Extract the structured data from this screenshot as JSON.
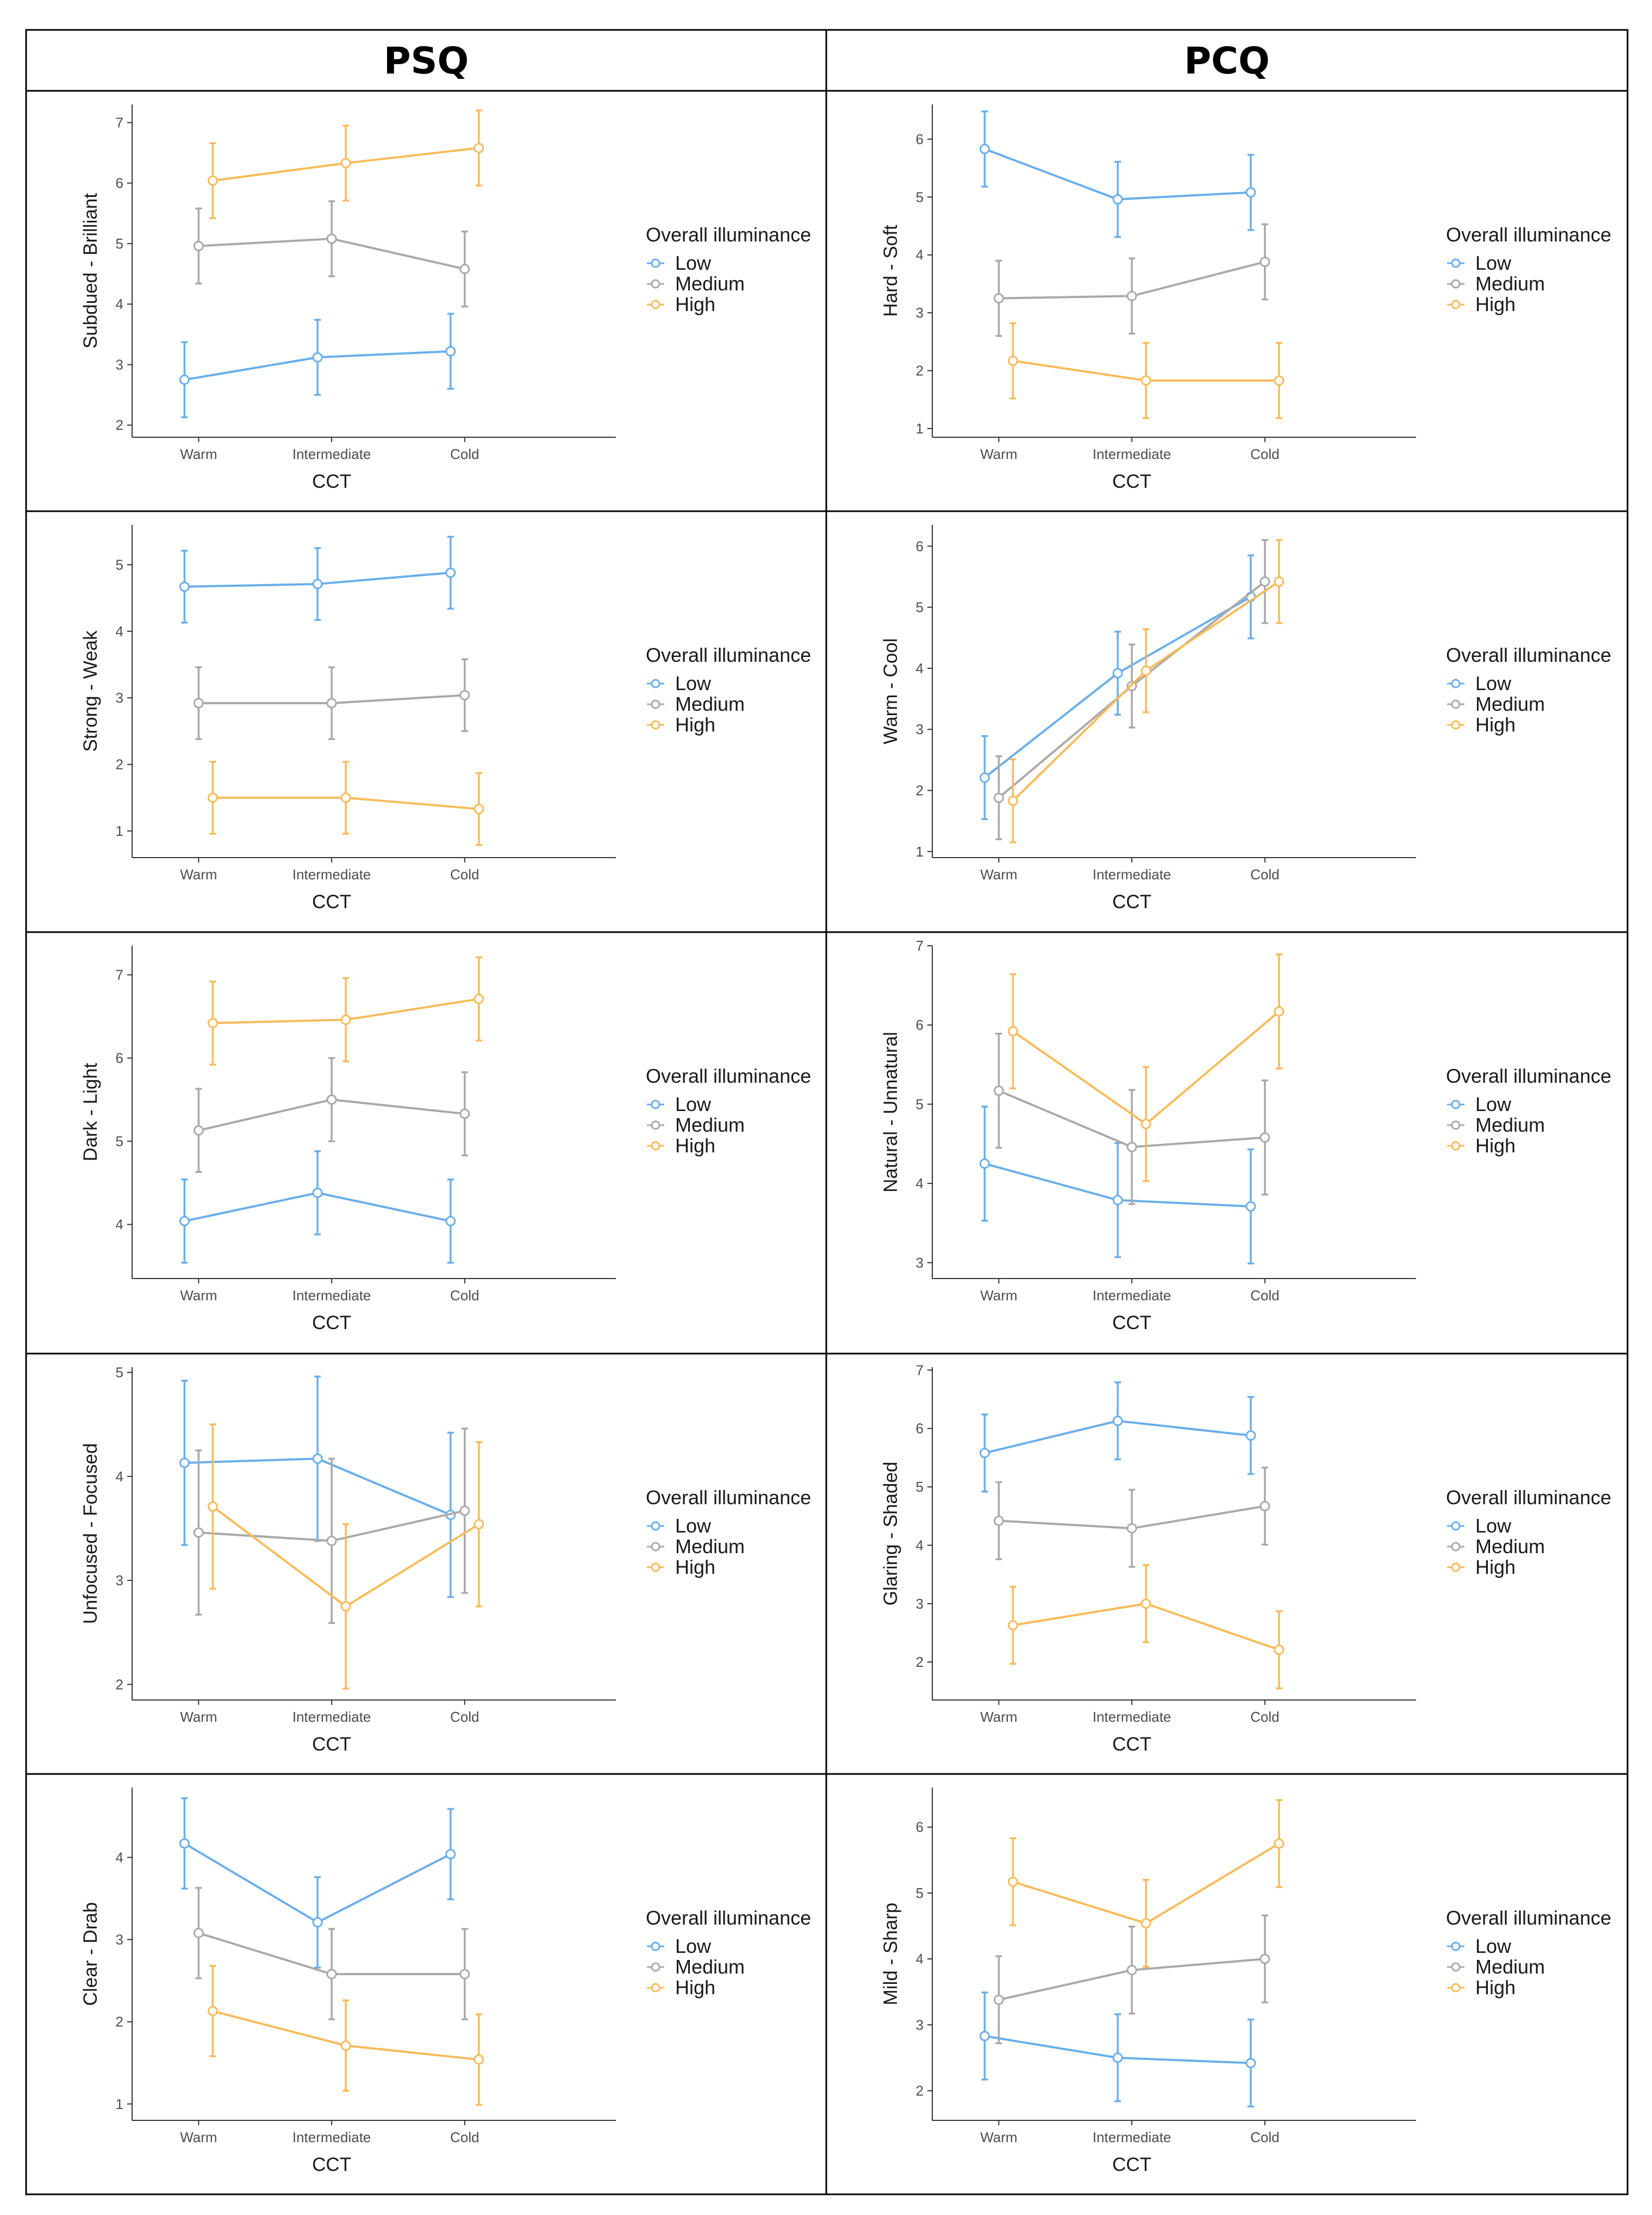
{
  "headers": {
    "left": "PSQ",
    "right": "PCQ"
  },
  "legend": {
    "title": "Overall illuminance",
    "entries": [
      {
        "name": "Low",
        "color": "#6aaeea"
      },
      {
        "name": "Medium",
        "color": "#a9a9a9"
      },
      {
        "name": "High",
        "color": "#f7bb5a"
      }
    ]
  },
  "chart_data": [
    {
      "type": "line",
      "column": "PSQ",
      "title": "",
      "ylabel": "Subdued - Brilliant",
      "xlabel": "CCT",
      "categories": [
        "Warm",
        "Intermediate",
        "Cold"
      ],
      "ylim": [
        1.8,
        7.3
      ],
      "yticks": [
        2,
        3,
        4,
        5,
        6,
        7
      ],
      "series": [
        {
          "name": "Low",
          "values": [
            2.75,
            3.12,
            3.22
          ],
          "errors": [
            0.62,
            0.62,
            0.62
          ]
        },
        {
          "name": "Medium",
          "values": [
            4.96,
            5.08,
            4.58
          ],
          "errors": [
            0.62,
            0.62,
            0.62
          ]
        },
        {
          "name": "High",
          "values": [
            6.04,
            6.33,
            6.58
          ],
          "errors": [
            0.62,
            0.62,
            0.62
          ]
        }
      ]
    },
    {
      "type": "line",
      "column": "PCQ",
      "title": "",
      "ylabel": "Hard - Soft",
      "xlabel": "CCT",
      "categories": [
        "Warm",
        "Intermediate",
        "Cold"
      ],
      "ylim": [
        0.85,
        6.6
      ],
      "yticks": [
        1,
        2,
        3,
        4,
        5,
        6
      ],
      "series": [
        {
          "name": "Low",
          "values": [
            5.83,
            4.96,
            5.08
          ],
          "errors": [
            0.65,
            0.65,
            0.65
          ]
        },
        {
          "name": "Medium",
          "values": [
            3.25,
            3.29,
            3.88
          ],
          "errors": [
            0.65,
            0.65,
            0.65
          ]
        },
        {
          "name": "High",
          "values": [
            2.17,
            1.83,
            1.83
          ],
          "errors": [
            0.65,
            0.65,
            0.65
          ]
        }
      ]
    },
    {
      "type": "line",
      "column": "PSQ",
      "title": "",
      "ylabel": "Strong - Weak",
      "xlabel": "CCT",
      "categories": [
        "Warm",
        "Intermediate",
        "Cold"
      ],
      "ylim": [
        0.6,
        5.6
      ],
      "yticks": [
        1,
        2,
        3,
        4,
        5
      ],
      "series": [
        {
          "name": "Low",
          "values": [
            4.67,
            4.71,
            4.88
          ],
          "errors": [
            0.54,
            0.54,
            0.54
          ]
        },
        {
          "name": "Medium",
          "values": [
            2.92,
            2.92,
            3.04
          ],
          "errors": [
            0.54,
            0.54,
            0.54
          ]
        },
        {
          "name": "High",
          "values": [
            1.5,
            1.5,
            1.33
          ],
          "errors": [
            0.54,
            0.54,
            0.54
          ]
        }
      ]
    },
    {
      "type": "line",
      "column": "PCQ",
      "title": "",
      "ylabel": "Warm - Cool",
      "xlabel": "CCT",
      "categories": [
        "Warm",
        "Intermediate",
        "Cold"
      ],
      "ylim": [
        0.9,
        6.35
      ],
      "yticks": [
        1,
        2,
        3,
        4,
        5,
        6
      ],
      "series": [
        {
          "name": "Low",
          "values": [
            2.21,
            3.92,
            5.17
          ],
          "errors": [
            0.68,
            0.68,
            0.68
          ]
        },
        {
          "name": "Medium",
          "values": [
            1.88,
            3.71,
            5.42
          ],
          "errors": [
            0.68,
            0.68,
            0.68
          ]
        },
        {
          "name": "High",
          "values": [
            1.83,
            3.96,
            5.42
          ],
          "errors": [
            0.68,
            0.68,
            0.68
          ]
        }
      ]
    },
    {
      "type": "line",
      "column": "PSQ",
      "title": "",
      "ylabel": "Dark - Light",
      "xlabel": "CCT",
      "categories": [
        "Warm",
        "Intermediate",
        "Cold"
      ],
      "ylim": [
        3.35,
        7.35
      ],
      "yticks": [
        4,
        5,
        6,
        7
      ],
      "series": [
        {
          "name": "Low",
          "values": [
            4.04,
            4.38,
            4.04
          ],
          "errors": [
            0.5,
            0.5,
            0.5
          ]
        },
        {
          "name": "Medium",
          "values": [
            5.13,
            5.5,
            5.33
          ],
          "errors": [
            0.5,
            0.5,
            0.5
          ]
        },
        {
          "name": "High",
          "values": [
            6.42,
            6.46,
            6.71
          ],
          "errors": [
            0.5,
            0.5,
            0.5
          ]
        }
      ]
    },
    {
      "type": "line",
      "column": "PCQ",
      "title": "",
      "ylabel": "Natural - Unnatural",
      "xlabel": "CCT",
      "categories": [
        "Warm",
        "Intermediate",
        "Cold"
      ],
      "ylim": [
        2.8,
        7.0
      ],
      "yticks": [
        3,
        4,
        5,
        6,
        7
      ],
      "series": [
        {
          "name": "Low",
          "values": [
            4.25,
            3.79,
            3.71
          ],
          "errors": [
            0.72,
            0.72,
            0.72
          ]
        },
        {
          "name": "Medium",
          "values": [
            5.17,
            4.46,
            4.58
          ],
          "errors": [
            0.72,
            0.72,
            0.72
          ]
        },
        {
          "name": "High",
          "values": [
            5.92,
            4.75,
            6.17
          ],
          "errors": [
            0.72,
            0.72,
            0.72
          ]
        }
      ]
    },
    {
      "type": "line",
      "column": "PSQ",
      "title": "",
      "ylabel": "Unfocused - Focused",
      "xlabel": "CCT",
      "categories": [
        "Warm",
        "Intermediate",
        "Cold"
      ],
      "ylim": [
        1.85,
        5.05
      ],
      "yticks": [
        2,
        3,
        4,
        5
      ],
      "series": [
        {
          "name": "Low",
          "values": [
            4.13,
            4.17,
            3.63
          ],
          "errors": [
            0.79,
            0.79,
            0.79
          ]
        },
        {
          "name": "Medium",
          "values": [
            3.46,
            3.38,
            3.67
          ],
          "errors": [
            0.79,
            0.79,
            0.79
          ]
        },
        {
          "name": "High",
          "values": [
            3.71,
            2.75,
            3.54
          ],
          "errors": [
            0.79,
            0.79,
            0.79
          ]
        }
      ]
    },
    {
      "type": "line",
      "column": "PCQ",
      "title": "",
      "ylabel": "Glaring - Shaded",
      "xlabel": "CCT",
      "categories": [
        "Warm",
        "Intermediate",
        "Cold"
      ],
      "ylim": [
        1.35,
        7.05
      ],
      "yticks": [
        2,
        3,
        4,
        5,
        6,
        7
      ],
      "series": [
        {
          "name": "Low",
          "values": [
            5.58,
            6.13,
            5.88
          ],
          "errors": [
            0.66,
            0.66,
            0.66
          ]
        },
        {
          "name": "Medium",
          "values": [
            4.42,
            4.29,
            4.67
          ],
          "errors": [
            0.66,
            0.66,
            0.66
          ]
        },
        {
          "name": "High",
          "values": [
            2.63,
            3.0,
            2.21
          ],
          "errors": [
            0.66,
            0.66,
            0.66
          ]
        }
      ]
    },
    {
      "type": "line",
      "column": "PSQ",
      "title": "",
      "ylabel": "Clear - Drab",
      "xlabel": "CCT",
      "categories": [
        "Warm",
        "Intermediate",
        "Cold"
      ],
      "ylim": [
        0.8,
        4.85
      ],
      "yticks": [
        1,
        2,
        3,
        4
      ],
      "series": [
        {
          "name": "Low",
          "values": [
            4.17,
            3.21,
            4.04
          ],
          "errors": [
            0.55,
            0.55,
            0.55
          ]
        },
        {
          "name": "Medium",
          "values": [
            3.08,
            2.58,
            2.58
          ],
          "errors": [
            0.55,
            0.55,
            0.55
          ]
        },
        {
          "name": "High",
          "values": [
            2.13,
            1.71,
            1.54
          ],
          "errors": [
            0.55,
            0.55,
            0.55
          ]
        }
      ]
    },
    {
      "type": "line",
      "column": "PCQ",
      "title": "",
      "ylabel": "Mild - Sharp",
      "xlabel": "CCT",
      "categories": [
        "Warm",
        "Intermediate",
        "Cold"
      ],
      "ylim": [
        1.55,
        6.6
      ],
      "yticks": [
        2,
        3,
        4,
        5,
        6
      ],
      "series": [
        {
          "name": "Low",
          "values": [
            2.83,
            2.5,
            2.42
          ],
          "errors": [
            0.66,
            0.66,
            0.66
          ]
        },
        {
          "name": "Medium",
          "values": [
            3.38,
            3.83,
            4.0
          ],
          "errors": [
            0.66,
            0.66,
            0.66
          ]
        },
        {
          "name": "High",
          "values": [
            5.17,
            4.54,
            5.75
          ],
          "errors": [
            0.66,
            0.66,
            0.66
          ]
        }
      ]
    }
  ]
}
